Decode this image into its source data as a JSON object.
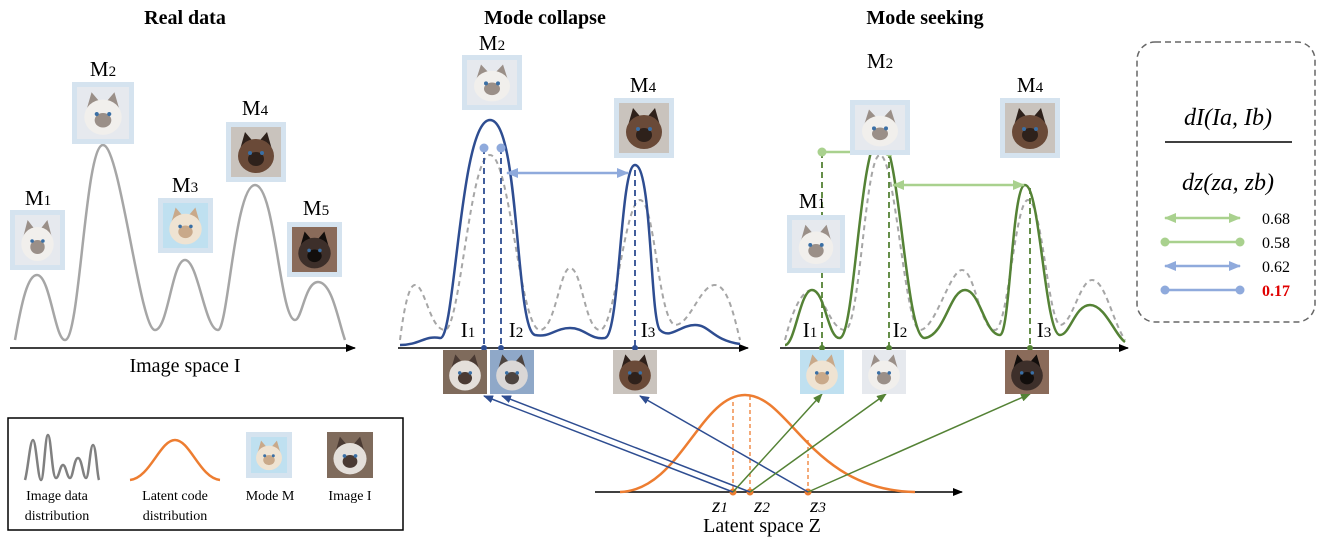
{
  "titles": [
    "Real data",
    "Mode collapse",
    "Mode seeking"
  ],
  "real_data": {
    "modes": [
      "M1",
      "M2",
      "M3",
      "M4",
      "M5"
    ],
    "axis_label": "Image space I"
  },
  "mode_collapse": {
    "modes": [
      "M2",
      "M4"
    ],
    "images": [
      "I1",
      "I2",
      "I3"
    ]
  },
  "mode_seeking": {
    "modes": [
      "M1",
      "M2",
      "M4"
    ],
    "images": [
      "I1",
      "I2",
      "I3"
    ]
  },
  "latent": {
    "codes": [
      "z1",
      "z2",
      "z3"
    ],
    "axis_label": "Latent space Z"
  },
  "ratio_legend": {
    "numerator": "dI(Ia, Ib)",
    "denominator": "dz(za, zb)",
    "entries": [
      "0.68",
      "0.58",
      "0.62",
      "0.17"
    ]
  },
  "legend": {
    "items": [
      [
        "Image data",
        "distribution"
      ],
      [
        "Latent code",
        "distribution"
      ],
      [
        "Mode M"
      ],
      [
        "Image I"
      ]
    ]
  }
}
